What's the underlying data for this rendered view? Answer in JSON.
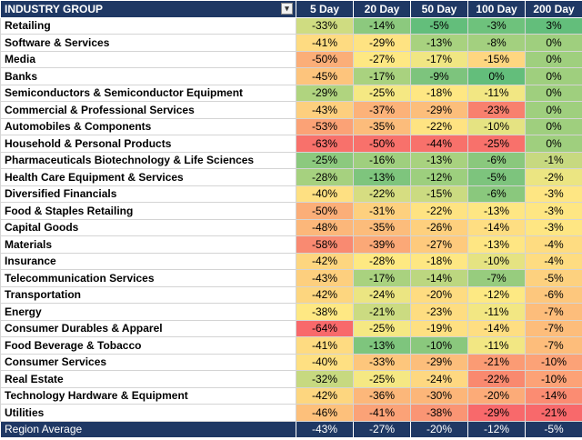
{
  "header": {
    "group_label": "INDUSTRY GROUP",
    "filter_icon": "filter-dropdown-icon",
    "columns": [
      "5 Day",
      "20 Day",
      "50 Day",
      "100 Day",
      "200 Day"
    ]
  },
  "rows": [
    {
      "name": "Retailing",
      "values": [
        "-33%",
        "-14%",
        "-5%",
        "-3%",
        "3%"
      ],
      "colors": [
        "#cfdc81",
        "#8cc97e",
        "#63be7b",
        "#6ec27c",
        "#63be7b"
      ]
    },
    {
      "name": "Software & Services",
      "values": [
        "-41%",
        "-29%",
        "-13%",
        "-8%",
        "0%"
      ],
      "colors": [
        "#fedb81",
        "#fee382",
        "#a8d27f",
        "#a3d07f",
        "#9fcf7e"
      ]
    },
    {
      "name": "Media",
      "values": [
        "-50%",
        "-27%",
        "-17%",
        "-15%",
        "0%"
      ],
      "colors": [
        "#fbae78",
        "#fee883",
        "#f0e683",
        "#fed680",
        "#9fcf7e"
      ]
    },
    {
      "name": "Banks",
      "values": [
        "-45%",
        "-17%",
        "-9%",
        "0%",
        "0%"
      ],
      "colors": [
        "#fdc47c",
        "#a9d27f",
        "#7dc47d",
        "#63be7b",
        "#9fcf7e"
      ]
    },
    {
      "name": "Semiconductors & Semiconductor Equipment",
      "values": [
        "-29%",
        "-25%",
        "-18%",
        "-11%",
        "0%"
      ],
      "colors": [
        "#b0d47f",
        "#f5e883",
        "#fee783",
        "#f2e783",
        "#9fcf7e"
      ]
    },
    {
      "name": "Commercial & Professional Services",
      "values": [
        "-43%",
        "-37%",
        "-29%",
        "-23%",
        "0%"
      ],
      "colors": [
        "#fdcf7e",
        "#fcb279",
        "#fcbe7b",
        "#f8806e",
        "#9fcf7e"
      ]
    },
    {
      "name": "Automobiles & Components",
      "values": [
        "-53%",
        "-35%",
        "-22%",
        "-10%",
        "0%"
      ],
      "colors": [
        "#fba276",
        "#fcbc7b",
        "#fee382",
        "#e5e382",
        "#9fcf7e"
      ]
    },
    {
      "name": "Household & Personal Products",
      "values": [
        "-63%",
        "-50%",
        "-44%",
        "-25%",
        "0%"
      ],
      "colors": [
        "#f8716b",
        "#f8716b",
        "#f8716b",
        "#f8716b",
        "#9fcf7e"
      ]
    },
    {
      "name": "Pharmaceuticals Biotechnology & Life Sciences",
      "values": [
        "-25%",
        "-16%",
        "-13%",
        "-6%",
        "-1%"
      ],
      "colors": [
        "#8cc97e",
        "#9fcf7e",
        "#a8d27f",
        "#8ac87d",
        "#c7d980"
      ]
    },
    {
      "name": "Health Care Equipment & Services",
      "values": [
        "-28%",
        "-13%",
        "-12%",
        "-5%",
        "-2%"
      ],
      "colors": [
        "#a6d17f",
        "#7ec57d",
        "#9dcf7e",
        "#7dc47d",
        "#ebe582"
      ]
    },
    {
      "name": "Diversified Financials",
      "values": [
        "-40%",
        "-22%",
        "-15%",
        "-6%",
        "-3%"
      ],
      "colors": [
        "#fee082",
        "#d6dd81",
        "#cbdb81",
        "#8ac87d",
        "#fee683"
      ]
    },
    {
      "name": "Food & Staples Retailing",
      "values": [
        "-50%",
        "-31%",
        "-22%",
        "-13%",
        "-3%"
      ],
      "colors": [
        "#fbae78",
        "#fdd07e",
        "#fee382",
        "#fee683",
        "#fee683"
      ]
    },
    {
      "name": "Capital Goods",
      "values": [
        "-48%",
        "-35%",
        "-26%",
        "-14%",
        "-3%"
      ],
      "colors": [
        "#fcb77a",
        "#fcbc7b",
        "#fed07e",
        "#fede82",
        "#fee683"
      ]
    },
    {
      "name": "Materials",
      "values": [
        "-58%",
        "-39%",
        "-27%",
        "-13%",
        "-4%"
      ],
      "colors": [
        "#f98a71",
        "#fba877",
        "#feca7d",
        "#fee683",
        "#fedc81"
      ]
    },
    {
      "name": "Insurance",
      "values": [
        "-42%",
        "-28%",
        "-18%",
        "-10%",
        "-4%"
      ],
      "colors": [
        "#fdd67f",
        "#fee982",
        "#fee783",
        "#e5e382",
        "#fedc81"
      ]
    },
    {
      "name": "Telecommunication Services",
      "values": [
        "-43%",
        "-17%",
        "-14%",
        "-7%",
        "-5%"
      ],
      "colors": [
        "#fdcf7e",
        "#a9d27f",
        "#bcd780",
        "#97cc7e",
        "#fdd17f"
      ]
    },
    {
      "name": "Transportation",
      "values": [
        "-42%",
        "-24%",
        "-20%",
        "-12%",
        "-6%"
      ],
      "colors": [
        "#fdd67f",
        "#ebe582",
        "#fedc81",
        "#fde983",
        "#fdc77d"
      ]
    },
    {
      "name": "Energy",
      "values": [
        "-38%",
        "-21%",
        "-23%",
        "-11%",
        "-7%"
      ],
      "colors": [
        "#fee883",
        "#cbdb81",
        "#fedd81",
        "#f2e783",
        "#fdbd7b"
      ]
    },
    {
      "name": "Consumer Durables & Apparel",
      "values": [
        "-64%",
        "-25%",
        "-19%",
        "-14%",
        "-7%"
      ],
      "colors": [
        "#f8696b",
        "#f5e883",
        "#fee082",
        "#fede82",
        "#fdbd7b"
      ]
    },
    {
      "name": "Food Beverage & Tobacco",
      "values": [
        "-41%",
        "-13%",
        "-10%",
        "-11%",
        "-7%"
      ],
      "colors": [
        "#fedb81",
        "#7ec57d",
        "#8ac87d",
        "#f2e783",
        "#fdbd7b"
      ]
    },
    {
      "name": "Consumer Services",
      "values": [
        "-40%",
        "-33%",
        "-29%",
        "-21%",
        "-10%"
      ],
      "colors": [
        "#fee082",
        "#fdc67c",
        "#fcbe7b",
        "#fb9b74",
        "#fca277"
      ]
    },
    {
      "name": "Real Estate",
      "values": [
        "-32%",
        "-25%",
        "-24%",
        "-22%",
        "-10%"
      ],
      "colors": [
        "#c7d980",
        "#f5e883",
        "#fed881",
        "#f9896f",
        "#fca277"
      ]
    },
    {
      "name": "Technology Hardware & Equipment",
      "values": [
        "-42%",
        "-36%",
        "-30%",
        "-20%",
        "-14%"
      ],
      "colors": [
        "#fdd67f",
        "#fcb77a",
        "#fcb679",
        "#fcab78",
        "#fb8c72"
      ]
    },
    {
      "name": "Utilities",
      "values": [
        "-46%",
        "-41%",
        "-38%",
        "-29%",
        "-21%"
      ],
      "colors": [
        "#fdc07b",
        "#fba277",
        "#fa9574",
        "#f8696b",
        "#f8696b"
      ]
    }
  ],
  "footer": {
    "name": "Region Average",
    "values": [
      "-43%",
      "-27%",
      "-20%",
      "-12%",
      "-5%"
    ]
  }
}
